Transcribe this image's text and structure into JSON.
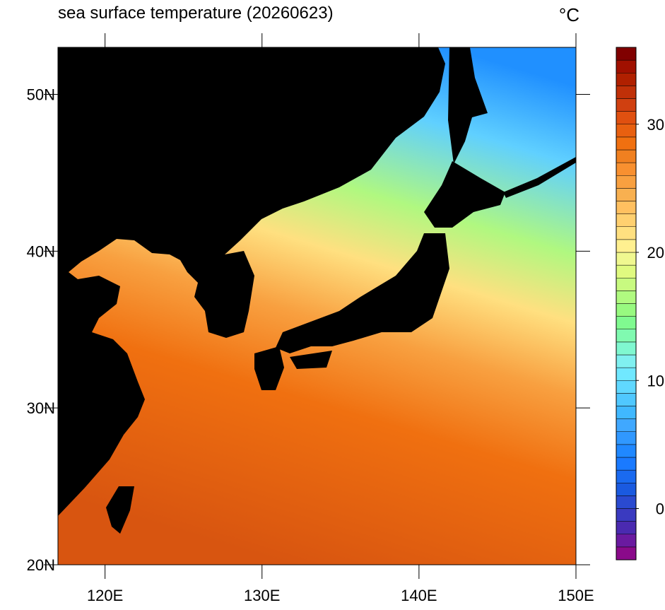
{
  "chart_data": {
    "type": "map",
    "title": "sea surface temperature (20260623)",
    "unit": "°C",
    "xlim": [
      117,
      150
    ],
    "ylim": [
      20,
      53
    ],
    "xticks": [
      {
        "value": 120,
        "label": "120E"
      },
      {
        "value": 130,
        "label": "130E"
      },
      {
        "value": 140,
        "label": "140E"
      },
      {
        "value": 150,
        "label": "150E"
      }
    ],
    "yticks": [
      {
        "value": 20,
        "label": "20N"
      },
      {
        "value": 30,
        "label": "30N"
      },
      {
        "value": 40,
        "label": "40N"
      },
      {
        "value": 50,
        "label": "50N"
      }
    ],
    "colorbar": {
      "lim": [
        -4,
        36
      ],
      "ticks": [
        0,
        10,
        20,
        30
      ],
      "colors": [
        "#8a0a8a",
        "#6a1aa0",
        "#4a2ab0",
        "#3a3ac0",
        "#2a4ad0",
        "#1a5ae0",
        "#1a6af0",
        "#1a7aff",
        "#2088ff",
        "#3098ff",
        "#40a8ff",
        "#40b8ff",
        "#50c8ff",
        "#60d8ff",
        "#70e8ff",
        "#80f0f0",
        "#80f8d0",
        "#80fab0",
        "#80fa90",
        "#98fa80",
        "#b0fa80",
        "#c8fa80",
        "#e0fa80",
        "#f0f890",
        "#fff090",
        "#ffe080",
        "#ffd070",
        "#ffc060",
        "#f8b050",
        "#f8a040",
        "#f89030",
        "#f08020",
        "#f07010",
        "#e86010",
        "#e05010",
        "#d04010",
        "#c03008",
        "#b02000",
        "#a01000",
        "#800000"
      ]
    }
  }
}
